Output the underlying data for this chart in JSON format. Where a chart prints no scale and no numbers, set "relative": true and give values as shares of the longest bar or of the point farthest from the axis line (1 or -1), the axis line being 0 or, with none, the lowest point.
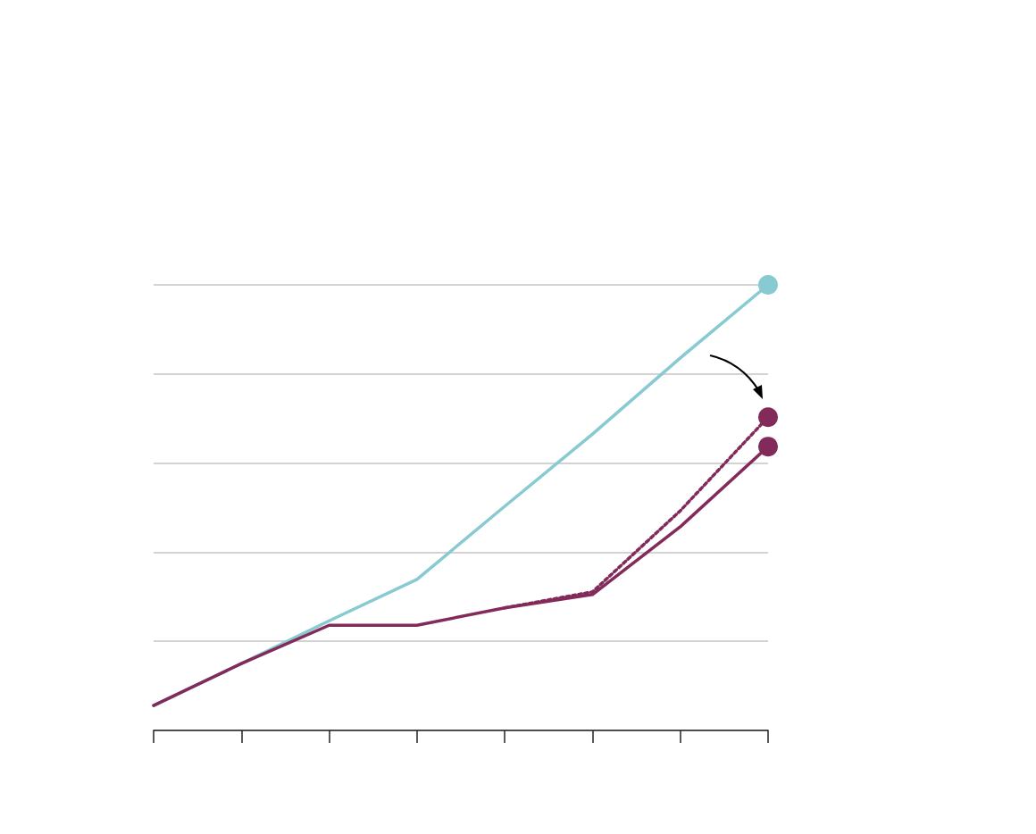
{
  "chart_data": {
    "type": "line",
    "relative": true,
    "grid": "y",
    "categories": [
      null,
      null,
      null,
      null,
      null,
      null,
      null,
      null
    ],
    "series": [
      {
        "color": "#88cad2",
        "line_style": "solid",
        "values": [
          0.056,
          0.15,
          0.246,
          0.339,
          0.503,
          0.665,
          0.836,
          1
        ]
      },
      {
        "color": "#822a5a",
        "line_style": "dotted",
        "values": [
          null,
          null,
          null,
          null,
          0.275,
          0.311,
          0.493,
          0.703
        ]
      },
      {
        "color": "#822a5a",
        "line_style": "solid",
        "values": [
          0.056,
          0.15,
          0.236,
          0.236,
          0.275,
          0.305,
          0.457,
          0.637
        ]
      }
    ]
  }
}
